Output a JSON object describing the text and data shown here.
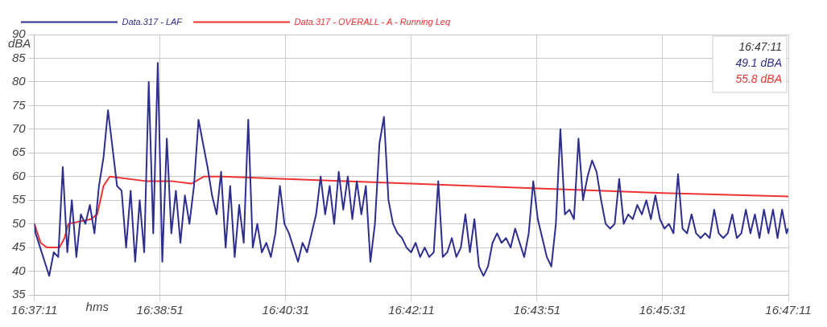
{
  "chart_data": {
    "type": "line",
    "xlabel": "hms",
    "ylabel": "dBA",
    "legend": "top left",
    "grid": true,
    "marker": "none",
    "line_style": "solid",
    "xlim": [
      16.61972,
      16.78639
    ],
    "ylim": [
      35,
      90
    ],
    "xticks": [
      {
        "value": 16.61972,
        "label": "16:37:11"
      },
      {
        "value": 16.6475,
        "label": "16:38:51"
      },
      {
        "value": 16.67528,
        "label": "16:40:31"
      },
      {
        "value": 16.70306,
        "label": "16:42:11"
      },
      {
        "value": 16.73083,
        "label": "16:43:51"
      },
      {
        "value": 16.75861,
        "label": "16:45:31"
      },
      {
        "value": 16.78639,
        "label": "16:47:11"
      }
    ],
    "yticks": [
      35,
      40,
      45,
      50,
      55,
      60,
      65,
      70,
      75,
      80,
      85,
      90
    ],
    "annotations": [
      "16:47:11",
      "49.1 dBA",
      "55.8 dBA"
    ],
    "x": [
      16.61972,
      16.62,
      16.621,
      16.622,
      16.623,
      16.624,
      16.625,
      16.626,
      16.627,
      16.628,
      16.629,
      16.63,
      16.631,
      16.632,
      16.633,
      16.634,
      16.635,
      16.636,
      16.637,
      16.638,
      16.639,
      16.64,
      16.641,
      16.642,
      16.643,
      16.644,
      16.645,
      16.646,
      16.647,
      16.648,
      16.649,
      16.65,
      16.651,
      16.652,
      16.653,
      16.654,
      16.655,
      16.656,
      16.657,
      16.658,
      16.659,
      16.66,
      16.661,
      16.662,
      16.663,
      16.664,
      16.665,
      16.666,
      16.667,
      16.668,
      16.669,
      16.67,
      16.671,
      16.672,
      16.673,
      16.674,
      16.675,
      16.676,
      16.677,
      16.678,
      16.679,
      16.68,
      16.681,
      16.682,
      16.683,
      16.684,
      16.685,
      16.686,
      16.687,
      16.688,
      16.689,
      16.69,
      16.691,
      16.692,
      16.693,
      16.694,
      16.695,
      16.696,
      16.697,
      16.698,
      16.699,
      16.7,
      16.701,
      16.702,
      16.703,
      16.704,
      16.705,
      16.706,
      16.707,
      16.708,
      16.709,
      16.71,
      16.711,
      16.712,
      16.713,
      16.714,
      16.715,
      16.716,
      16.717,
      16.718,
      16.719,
      16.72,
      16.721,
      16.722,
      16.723,
      16.724,
      16.725,
      16.726,
      16.727,
      16.728,
      16.729,
      16.73,
      16.731,
      16.732,
      16.733,
      16.734,
      16.735,
      16.736,
      16.737,
      16.738,
      16.739,
      16.74,
      16.741,
      16.742,
      16.743,
      16.744,
      16.745,
      16.746,
      16.747,
      16.748,
      16.749,
      16.75,
      16.751,
      16.752,
      16.753,
      16.754,
      16.755,
      16.756,
      16.757,
      16.758,
      16.759,
      16.76,
      16.761,
      16.762,
      16.763,
      16.764,
      16.765,
      16.766,
      16.767,
      16.768,
      16.769,
      16.77,
      16.771,
      16.772,
      16.773,
      16.774,
      16.775,
      16.776,
      16.777,
      16.778,
      16.779,
      16.78,
      16.781,
      16.782,
      16.783,
      16.784,
      16.785,
      16.786,
      16.78639
    ],
    "series": [
      {
        "name": "Data.317 - LAF",
        "color": "#2e2e8e",
        "values": [
          50,
          48,
          45,
          42,
          39,
          44,
          43,
          62,
          44,
          55,
          43,
          52,
          50,
          54,
          48,
          58,
          64,
          74,
          66,
          58,
          57,
          45,
          57,
          42,
          55,
          44,
          80,
          48,
          84,
          42,
          68,
          48,
          57,
          46,
          56,
          50,
          58,
          72,
          67,
          62,
          56,
          52,
          61,
          45,
          58,
          43,
          54,
          46,
          72,
          45,
          50,
          44,
          46,
          43,
          48,
          58,
          50,
          48,
          45,
          42,
          46,
          44,
          48,
          52,
          60,
          52,
          58,
          50,
          61,
          53,
          60,
          51,
          59,
          52,
          58,
          42,
          50,
          67,
          72.6,
          55,
          50,
          48,
          47,
          45,
          44,
          46,
          43,
          45,
          43,
          44,
          59,
          43,
          44,
          47,
          43,
          45,
          52,
          44,
          51,
          41,
          39,
          41,
          46,
          48,
          46,
          47,
          45,
          49,
          46,
          43,
          48,
          59,
          51,
          47,
          43,
          41,
          50,
          70,
          52,
          53,
          51,
          68,
          55,
          60,
          63.4,
          61,
          55,
          50,
          49,
          50,
          59.5,
          50,
          52,
          51,
          54,
          52,
          55,
          51,
          56,
          51,
          49,
          50,
          48,
          60.5,
          49,
          48,
          52,
          48,
          47,
          48,
          47,
          53,
          48,
          47,
          48,
          52,
          47,
          48,
          53,
          48,
          52,
          47,
          53,
          48,
          53,
          47,
          53,
          48,
          49.1
        ]
      },
      {
        "name": "Data.317 - OVERALL - A - Running Leq",
        "color": "#ee3333",
        "x": [
          16.61972,
          16.62111,
          16.6225,
          16.62528,
          16.62639,
          16.62722,
          16.63222,
          16.63361,
          16.635,
          16.63639,
          16.64472,
          16.65028,
          16.65444,
          16.65722,
          16.66139,
          16.67528,
          16.70306,
          16.73083,
          16.75861,
          16.78639
        ],
        "values": [
          50,
          46,
          45,
          45,
          47,
          50,
          51,
          52,
          58,
          60,
          59,
          59,
          58.5,
          60,
          60,
          59.5,
          58.5,
          57.5,
          56.5,
          55.8
        ]
      }
    ]
  }
}
